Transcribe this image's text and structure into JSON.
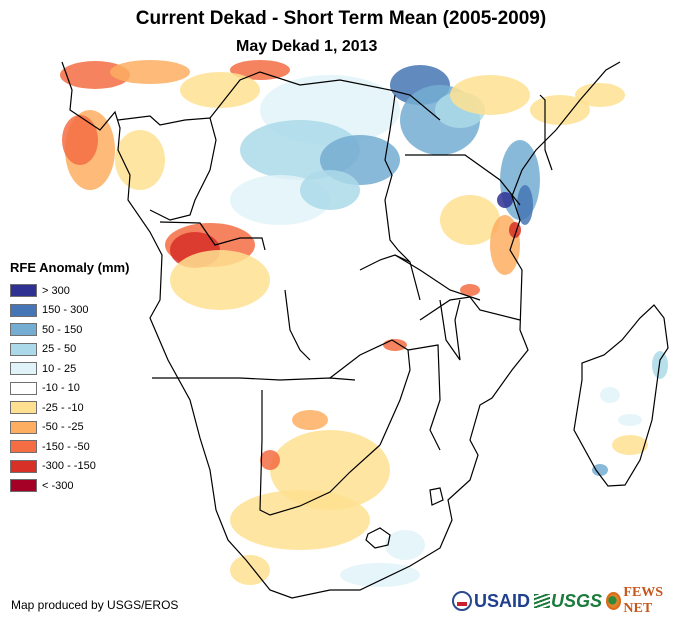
{
  "header": {
    "title": "Current Dekad - Short Term Mean (2005-2009)",
    "subtitle": "May Dekad 1, 2013"
  },
  "map": {
    "region": "Central, Eastern and Southern Africa with Madagascar",
    "variable": "RFE Anomaly (mm)",
    "background_color": "#ffffff",
    "border_color": "#000000"
  },
  "legend": {
    "title": "RFE Anomaly (mm)",
    "items": [
      {
        "label": "> 300",
        "color": "#2e3192"
      },
      {
        "label": "150 - 300",
        "color": "#4575b4"
      },
      {
        "label": "50 - 150",
        "color": "#74add1"
      },
      {
        "label": "25 - 50",
        "color": "#abd9e9"
      },
      {
        "label": "10 - 25",
        "color": "#e0f3f8"
      },
      {
        "label": "-10 - 10",
        "color": "#ffffff"
      },
      {
        "label": "-25 - -10",
        "color": "#fee090"
      },
      {
        "label": "-50 - -25",
        "color": "#fdae61"
      },
      {
        "label": "-150 - -50",
        "color": "#f46d43"
      },
      {
        "label": "-300 - -150",
        "color": "#d73027"
      },
      {
        "label": "< -300",
        "color": "#a50026"
      }
    ]
  },
  "footer": {
    "credit": "Map produced by USGS/EROS",
    "logos": {
      "usaid": "USAID",
      "usgs": "USGS",
      "fews": "FEWS NET"
    }
  }
}
